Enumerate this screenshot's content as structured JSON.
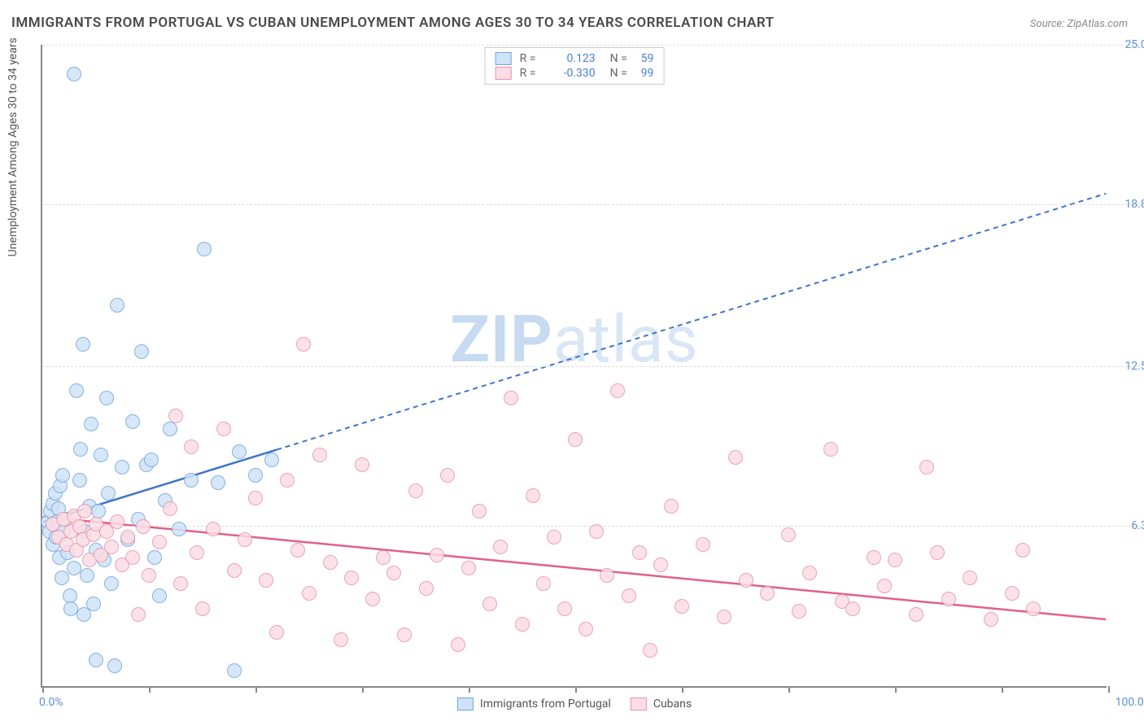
{
  "title": "IMMIGRANTS FROM PORTUGAL VS CUBAN UNEMPLOYMENT AMONG AGES 30 TO 34 YEARS CORRELATION CHART",
  "source_prefix": "Source: ",
  "source_name": "ZipAtlas.com",
  "ylabel": "Unemployment Among Ages 30 to 34 years",
  "watermark_bold": "ZIP",
  "watermark_rest": "atlas",
  "chart": {
    "type": "scatter",
    "xlim": [
      0,
      100
    ],
    "ylim": [
      0,
      25
    ],
    "x_min_label": "0.0%",
    "x_max_label": "100.0%",
    "x_ticks": [
      0,
      10,
      20,
      30,
      40,
      50,
      60,
      70,
      80,
      90,
      100
    ],
    "y_gridlines": [
      {
        "value": 6.3,
        "label": "6.3%"
      },
      {
        "value": 12.5,
        "label": "12.5%"
      },
      {
        "value": 18.8,
        "label": "18.8%"
      },
      {
        "value": 25.0,
        "label": "25.0%"
      }
    ],
    "background_color": "#ffffff",
    "grid_color": "#dddddd",
    "axis_color": "#888888",
    "marker_radius": 9,
    "marker_stroke_width": 1.5,
    "trend_line_width": 2.5,
    "trend_dash": "6,5"
  },
  "series": [
    {
      "name": "Immigrants from Portugal",
      "key": "portugal",
      "fill_color": "#cfe3f7",
      "stroke_color": "#6fa5de",
      "line_color": "#3f74c9",
      "r_value": "0.123",
      "n_value": "59",
      "trend": {
        "x1": 0,
        "y1": 6.4,
        "x_solid_end": 22,
        "x2": 100,
        "y2": 19.2
      },
      "points": [
        [
          0.5,
          6.4
        ],
        [
          0.7,
          6.0
        ],
        [
          0.8,
          6.8
        ],
        [
          1.0,
          5.5
        ],
        [
          1.0,
          7.1
        ],
        [
          1.2,
          7.5
        ],
        [
          1.3,
          5.8
        ],
        [
          1.4,
          6.4
        ],
        [
          1.5,
          6.9
        ],
        [
          1.6,
          5.0
        ],
        [
          1.7,
          7.8
        ],
        [
          1.8,
          4.2
        ],
        [
          1.9,
          8.2
        ],
        [
          2.0,
          6.0
        ],
        [
          2.2,
          6.5
        ],
        [
          2.4,
          5.2
        ],
        [
          2.6,
          3.5
        ],
        [
          2.7,
          3.0
        ],
        [
          3.0,
          4.6
        ],
        [
          3.0,
          23.8
        ],
        [
          3.2,
          11.5
        ],
        [
          3.5,
          8.0
        ],
        [
          3.6,
          9.2
        ],
        [
          3.8,
          13.3
        ],
        [
          3.9,
          2.8
        ],
        [
          4.0,
          6.0
        ],
        [
          4.2,
          4.3
        ],
        [
          4.4,
          7.0
        ],
        [
          4.6,
          10.2
        ],
        [
          4.8,
          3.2
        ],
        [
          5.0,
          5.3
        ],
        [
          5.0,
          1.0
        ],
        [
          5.3,
          6.8
        ],
        [
          5.5,
          9.0
        ],
        [
          5.8,
          4.9
        ],
        [
          6.0,
          11.2
        ],
        [
          6.2,
          7.5
        ],
        [
          6.5,
          4.0
        ],
        [
          6.8,
          0.8
        ],
        [
          7.0,
          14.8
        ],
        [
          7.5,
          8.5
        ],
        [
          8.0,
          5.7
        ],
        [
          8.5,
          10.3
        ],
        [
          9.0,
          6.5
        ],
        [
          9.3,
          13.0
        ],
        [
          9.8,
          8.6
        ],
        [
          10.2,
          8.8
        ],
        [
          10.5,
          5.0
        ],
        [
          11.0,
          3.5
        ],
        [
          11.5,
          7.2
        ],
        [
          12.0,
          10.0
        ],
        [
          12.8,
          6.1
        ],
        [
          14.0,
          8.0
        ],
        [
          15.2,
          17.0
        ],
        [
          16.5,
          7.9
        ],
        [
          18.0,
          0.6
        ],
        [
          18.5,
          9.1
        ],
        [
          20.0,
          8.2
        ],
        [
          21.5,
          8.8
        ]
      ]
    },
    {
      "name": "Cubans",
      "key": "cubans",
      "fill_color": "#fcdde5",
      "stroke_color": "#e793aa",
      "line_color": "#e26088",
      "r_value": "-0.330",
      "n_value": "99",
      "trend": {
        "x1": 0,
        "y1": 6.6,
        "x_solid_end": 100,
        "x2": 100,
        "y2": 2.6
      },
      "points": [
        [
          1.0,
          6.3
        ],
        [
          1.5,
          5.8
        ],
        [
          2.0,
          6.5
        ],
        [
          2.3,
          5.5
        ],
        [
          2.7,
          6.0
        ],
        [
          3.0,
          6.6
        ],
        [
          3.2,
          5.3
        ],
        [
          3.5,
          6.2
        ],
        [
          3.8,
          5.7
        ],
        [
          4.0,
          6.8
        ],
        [
          4.4,
          4.9
        ],
        [
          4.8,
          5.9
        ],
        [
          5.0,
          6.3
        ],
        [
          5.5,
          5.1
        ],
        [
          6.0,
          6.0
        ],
        [
          6.5,
          5.4
        ],
        [
          7.0,
          6.4
        ],
        [
          7.5,
          4.7
        ],
        [
          8.0,
          5.8
        ],
        [
          8.5,
          5.0
        ],
        [
          9.0,
          2.8
        ],
        [
          9.5,
          6.2
        ],
        [
          10.0,
          4.3
        ],
        [
          11.0,
          5.6
        ],
        [
          12.0,
          6.9
        ],
        [
          12.5,
          10.5
        ],
        [
          13.0,
          4.0
        ],
        [
          14.0,
          9.3
        ],
        [
          14.5,
          5.2
        ],
        [
          15.0,
          3.0
        ],
        [
          16.0,
          6.1
        ],
        [
          17.0,
          10.0
        ],
        [
          18.0,
          4.5
        ],
        [
          19.0,
          5.7
        ],
        [
          20.0,
          7.3
        ],
        [
          21.0,
          4.1
        ],
        [
          22.0,
          2.1
        ],
        [
          23.0,
          8.0
        ],
        [
          24.0,
          5.3
        ],
        [
          24.5,
          13.3
        ],
        [
          25.0,
          3.6
        ],
        [
          26.0,
          9.0
        ],
        [
          27.0,
          4.8
        ],
        [
          28.0,
          1.8
        ],
        [
          29.0,
          4.2
        ],
        [
          30.0,
          8.6
        ],
        [
          31.0,
          3.4
        ],
        [
          32.0,
          5.0
        ],
        [
          33.0,
          4.4
        ],
        [
          34.0,
          2.0
        ],
        [
          35.0,
          7.6
        ],
        [
          36.0,
          3.8
        ],
        [
          37.0,
          5.1
        ],
        [
          38.0,
          8.2
        ],
        [
          39.0,
          1.6
        ],
        [
          40.0,
          4.6
        ],
        [
          41.0,
          6.8
        ],
        [
          42.0,
          3.2
        ],
        [
          43.0,
          5.4
        ],
        [
          44.0,
          11.2
        ],
        [
          45.0,
          2.4
        ],
        [
          46.0,
          7.4
        ],
        [
          47.0,
          4.0
        ],
        [
          48.0,
          5.8
        ],
        [
          49.0,
          3.0
        ],
        [
          50.0,
          9.6
        ],
        [
          51.0,
          2.2
        ],
        [
          52.0,
          6.0
        ],
        [
          53.0,
          4.3
        ],
        [
          54.0,
          11.5
        ],
        [
          55.0,
          3.5
        ],
        [
          56.0,
          5.2
        ],
        [
          57.0,
          1.4
        ],
        [
          58.0,
          4.7
        ],
        [
          59.0,
          7.0
        ],
        [
          60.0,
          3.1
        ],
        [
          62.0,
          5.5
        ],
        [
          64.0,
          2.7
        ],
        [
          65.0,
          8.9
        ],
        [
          66.0,
          4.1
        ],
        [
          68.0,
          3.6
        ],
        [
          70.0,
          5.9
        ],
        [
          71.0,
          2.9
        ],
        [
          72.0,
          4.4
        ],
        [
          74.0,
          9.2
        ],
        [
          75.0,
          3.3
        ],
        [
          76.0,
          3.0
        ],
        [
          78.0,
          5.0
        ],
        [
          79.0,
          3.9
        ],
        [
          80.0,
          4.9
        ],
        [
          82.0,
          2.8
        ],
        [
          83.0,
          8.5
        ],
        [
          84.0,
          5.2
        ],
        [
          85.0,
          3.4
        ],
        [
          87.0,
          4.2
        ],
        [
          89.0,
          2.6
        ],
        [
          91.0,
          3.6
        ],
        [
          92.0,
          5.3
        ],
        [
          93.0,
          3.0
        ]
      ]
    }
  ],
  "legend_top": {
    "r_label": "R =",
    "n_label": "N ="
  }
}
